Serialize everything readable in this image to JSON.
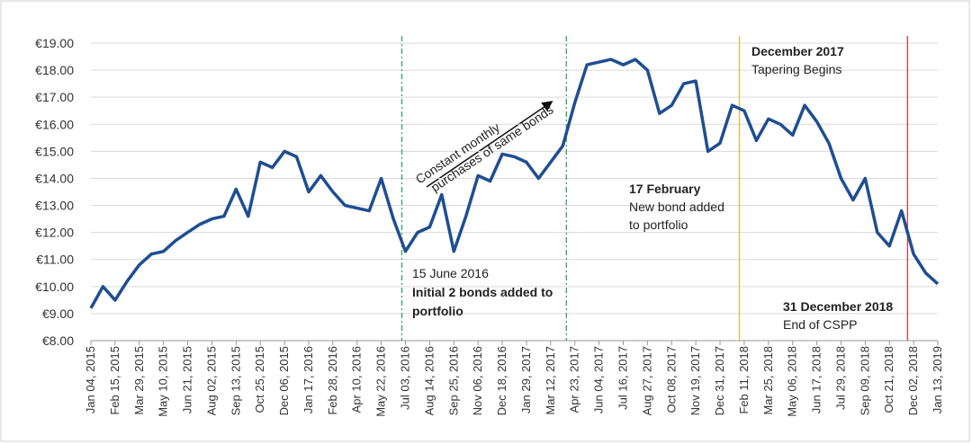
{
  "chart_data": {
    "type": "line",
    "categories": [
      "Jan 04, 2015",
      null,
      "Feb 15, 2015",
      null,
      "Mar 29, 2015",
      null,
      "May 10, 2015",
      null,
      "Jun 21, 2015",
      null,
      "Aug 02, 2015",
      null,
      "Sep 13, 2015",
      null,
      "Oct 25, 2015",
      null,
      "Dec 06, 2015",
      null,
      "Jan 17, 2016",
      null,
      "Feb 28, 2016",
      null,
      "Apr 10, 2016",
      null,
      "May 22, 2016",
      null,
      "Jul 03, 2016",
      null,
      "Aug 14, 2016",
      null,
      "Sep 25, 2016",
      null,
      "Nov 06, 2016",
      null,
      "Dec 18, 2016",
      null,
      "Jan 29, 2017",
      null,
      "Mar 12, 2017",
      null,
      "Apr 23, 2017",
      null,
      "Jun 04, 2017",
      null,
      "Jul 16, 2017",
      null,
      "Aug 27, 2017",
      null,
      "Oct 08, 2017",
      null,
      "Nov 19, 2017",
      null,
      "Dec 31, 2017",
      null,
      "Feb 11, 2018",
      null,
      "Mar 25, 2018",
      null,
      "May 06, 2018",
      null,
      "Jun 17, 2018",
      null,
      "Jul 29, 2018",
      null,
      "Sep 09, 2018",
      null,
      "Oct 21, 2018",
      null,
      "Dec 02, 2018",
      null,
      "Jan 13, 2019"
    ],
    "series": [
      {
        "color": "#1f4e91",
        "values": [
          9.2,
          10.0,
          9.5,
          10.2,
          10.8,
          11.2,
          11.3,
          11.7,
          12.0,
          12.3,
          12.5,
          12.6,
          13.6,
          12.6,
          14.6,
          14.4,
          15.0,
          14.8,
          13.5,
          14.1,
          13.5,
          13.0,
          12.9,
          12.8,
          14.0,
          12.5,
          11.3,
          12.0,
          12.2,
          13.4,
          11.3,
          12.6,
          14.1,
          13.9,
          14.9,
          14.8,
          14.6,
          14.0,
          14.6,
          15.2,
          16.8,
          18.2,
          18.3,
          18.4,
          18.2,
          18.4,
          18.0,
          16.4,
          16.7,
          17.5,
          17.6,
          15.0,
          15.3,
          16.7,
          16.5,
          15.4,
          16.2,
          16.0,
          15.6,
          16.7,
          16.1,
          15.3,
          14.0,
          13.2,
          14.0,
          12.0,
          11.5,
          12.8,
          11.2,
          10.5,
          10.1
        ]
      }
    ],
    "ylim": [
      8,
      19
    ],
    "yticks": [
      {
        "value": 8,
        "label": "€8.00"
      },
      {
        "value": 9,
        "label": "€9.00"
      },
      {
        "value": 10,
        "label": "€10.00"
      },
      {
        "value": 11,
        "label": "€11.00"
      },
      {
        "value": 12,
        "label": "€12.00"
      },
      {
        "value": 13,
        "label": "€13.00"
      },
      {
        "value": 14,
        "label": "€14.00"
      },
      {
        "value": 15,
        "label": "€15.00"
      },
      {
        "value": 16,
        "label": "€16.00"
      },
      {
        "value": 17,
        "label": "€17.00"
      },
      {
        "value": 18,
        "label": "€18.00"
      },
      {
        "value": 19,
        "label": "€19.00"
      }
    ],
    "grid": true,
    "vlines": [
      {
        "at": 25.7,
        "color": "#2eaa5a",
        "dashed": true
      },
      {
        "at": 39.3,
        "color": "#2eaa5a",
        "dashed": true
      },
      {
        "at": 53.6,
        "color": "#f2b632",
        "dashed": false
      },
      {
        "at": 67.5,
        "color": "#e03a3a",
        "dashed": false
      }
    ],
    "annotations": [
      {
        "text": "Constant monthly",
        "bold": false
      },
      {
        "text": "purchases of same bonds",
        "bold": false
      },
      {
        "text": "15 June 2016",
        "bold": false
      },
      {
        "text": "Initial 2 bonds added to",
        "bold": true
      },
      {
        "text": "portfolio",
        "bold": true
      },
      {
        "text": "17 February",
        "bold": true
      },
      {
        "text": "New bond added",
        "bold": false
      },
      {
        "text": "to portfolio",
        "bold": false
      },
      {
        "text": "December 2017",
        "bold": true
      },
      {
        "text": "Tapering Begins",
        "bold": false
      },
      {
        "text": "31 December 2018",
        "bold": true
      },
      {
        "text": "End of CSPP",
        "bold": false
      }
    ]
  }
}
